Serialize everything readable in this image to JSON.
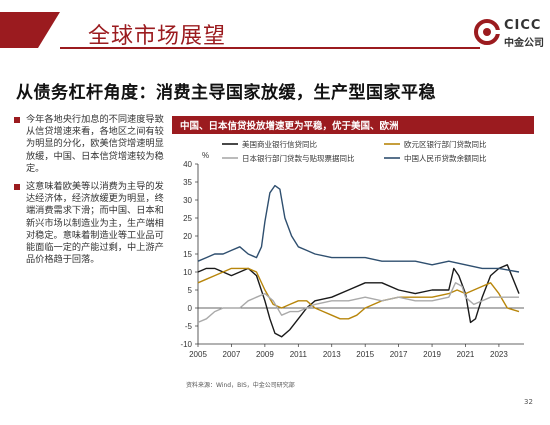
{
  "header": {
    "title": "全球市场展望"
  },
  "logo": {
    "en": "CICC",
    "cn": "中金公司"
  },
  "subtitle": "从债务杠杆角度：消费主导国家放缓，生产型国家平稳",
  "bullets": [
    "今年各地央行加息的不同速度导致从信贷增速来看，各地区之间有较为明显的分化，欧美信贷增速明显放缓，中国、日本信贷增速较为稳定。",
    "这意味着欧美等以消费为主导的发达经济体，经济放缓更为明显，终端消费需求下滑；而中国、日本和新兴市场以制造业为主，生产端相对稳定。意味着制造业等工业品可能面临一定的产能过剩，中上游产品价格趋于回落。"
  ],
  "colors": {
    "accent": "#9b1b1f",
    "us": "#1a1a1a",
    "eu": "#b8860b",
    "jp": "#aaaaaa",
    "cn": "#2f4f6f"
  },
  "chart_data": {
    "type": "line",
    "title": "中国、日本信贷投放增速更为平稳，优于美国、欧洲",
    "ylabel": "%",
    "xlabel": "",
    "ylim": [
      -10,
      40
    ],
    "yticks": [
      -10,
      -5,
      0,
      5,
      10,
      15,
      20,
      25,
      30,
      35,
      40
    ],
    "xlim": [
      2005,
      2024.5
    ],
    "xticks": [
      2005,
      2007,
      2009,
      2011,
      2013,
      2015,
      2017,
      2019,
      2021,
      2023
    ],
    "legend_position": "top",
    "grid": false,
    "series": [
      {
        "name": "美国商业银行信贷同比",
        "color": "#1a1a1a",
        "x": [
          2005,
          2005.5,
          2006,
          2006.5,
          2007,
          2007.5,
          2008,
          2008.5,
          2009,
          2009.3,
          2009.6,
          2010,
          2010.5,
          2011,
          2011.5,
          2012,
          2013,
          2014,
          2015,
          2016,
          2017,
          2018,
          2019,
          2019.5,
          2020,
          2020.3,
          2020.6,
          2021,
          2021.3,
          2021.6,
          2022,
          2022.5,
          2023,
          2023.5,
          2024.2
        ],
        "y": [
          10,
          11,
          11,
          10,
          9,
          10,
          11,
          9,
          2,
          -3,
          -7,
          -8,
          -6,
          -3,
          0,
          2,
          3,
          5,
          7,
          7,
          5,
          4,
          5,
          5,
          5,
          11,
          9,
          4,
          -4,
          -3,
          3,
          9,
          11,
          12,
          4
        ]
      },
      {
        "name": "欧元区银行部门贷款同比",
        "color": "#b8860b",
        "x": [
          2005,
          2005.5,
          2006,
          2006.5,
          2007,
          2007.5,
          2008,
          2008.5,
          2009,
          2009.5,
          2010,
          2010.5,
          2011,
          2011.5,
          2012,
          2012.5,
          2013,
          2013.5,
          2014,
          2014.5,
          2015,
          2016,
          2017,
          2018,
          2019,
          2020,
          2020.5,
          2021,
          2022,
          2022.5,
          2023,
          2023.5,
          2024.2
        ],
        "y": [
          7,
          8,
          9,
          10,
          11,
          11,
          11,
          10,
          5,
          1,
          0,
          1,
          2,
          2,
          0,
          -1,
          -2,
          -3,
          -3,
          -2,
          0,
          2,
          3,
          3,
          3,
          4,
          5,
          4,
          6,
          7,
          4,
          0,
          -1
        ]
      },
      {
        "name": "日本银行部门贷款与贴现票据同比",
        "color": "#aaaaaa",
        "x": [
          2005,
          2005.5,
          2006,
          2006.5,
          2007,
          2007.5,
          2008,
          2008.5,
          2009,
          2009.5,
          2010,
          2010.5,
          2011,
          2011.5,
          2012,
          2013,
          2014,
          2015,
          2016,
          2017,
          2018,
          2019,
          2020,
          2020.4,
          2020.8,
          2021,
          2021.5,
          2022,
          2022.5,
          2023,
          2023.5,
          2024.2
        ],
        "y": [
          -4,
          -3,
          -1,
          0,
          0,
          0,
          2,
          3,
          4,
          2,
          -2,
          -1,
          -1,
          0,
          1,
          2,
          2,
          3,
          2,
          3,
          2,
          2,
          3,
          7,
          6,
          3,
          1,
          2,
          3,
          3,
          3,
          3
        ]
      },
      {
        "name": "中国人民币贷款余额同比",
        "color": "#2f4f6f",
        "x": [
          2005,
          2005.5,
          2006,
          2006.5,
          2007,
          2007.5,
          2008,
          2008.5,
          2008.8,
          2009,
          2009.3,
          2009.6,
          2009.9,
          2010.2,
          2010.6,
          2011,
          2011.5,
          2012,
          2013,
          2014,
          2015,
          2016,
          2017,
          2018,
          2019,
          2020,
          2021,
          2022,
          2023,
          2024.2
        ],
        "y": [
          13,
          14,
          15,
          15,
          16,
          17,
          15,
          14,
          17,
          24,
          32,
          34,
          33,
          25,
          20,
          17,
          16,
          15,
          14,
          14,
          14,
          13,
          13,
          13,
          12,
          13,
          12,
          11,
          11,
          10
        ]
      }
    ]
  },
  "source": "资料来源：Wind，BIS，中金公司研究部",
  "page_number": "32"
}
